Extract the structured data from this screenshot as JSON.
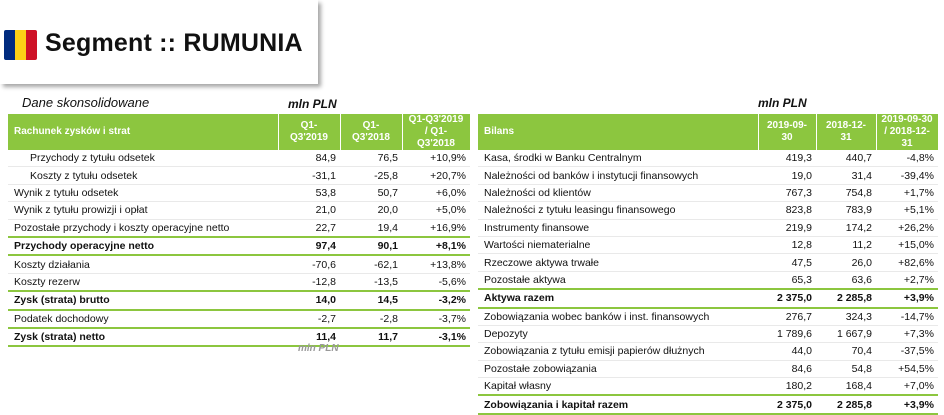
{
  "header": {
    "title": "Segment :: RUMUNIA",
    "flag_colors": [
      "#002b7f",
      "#fcd116",
      "#ce1126"
    ]
  },
  "left": {
    "caption": "Dane skonsolidowane",
    "unit": "mln PLN",
    "columns": [
      "Rachunek zysków i strat",
      "Q1-Q3'2019",
      "Q1-Q3'2018",
      "Q1-Q3'2019 / Q1-Q3'2018"
    ],
    "rows": [
      {
        "label": "Przychody z tytułu odsetek",
        "v1": "84,9",
        "v2": "76,5",
        "chg": "+10,9%"
      },
      {
        "label": "Koszty z tytułu odsetek",
        "v1": "-31,1",
        "v2": "-25,8",
        "chg": "+20,7%"
      },
      {
        "label": "Wynik z tytułu odsetek",
        "v1": "53,8",
        "v2": "50,7",
        "chg": "+6,0%"
      },
      {
        "label": "Wynik z tytułu prowizji i opłat",
        "v1": "21,0",
        "v2": "20,0",
        "chg": "+5,0%"
      },
      {
        "label": "Pozostałe przychody i koszty operacyjne netto",
        "v1": "22,7",
        "v2": "19,4",
        "chg": "+16,9%"
      },
      {
        "label": "Przychody operacyjne netto",
        "v1": "97,4",
        "v2": "90,1",
        "chg": "+8,1%"
      },
      {
        "label": "Koszty działania",
        "v1": "-70,6",
        "v2": "-62,1",
        "chg": "+13,8%"
      },
      {
        "label": "Koszty rezerw",
        "v1": "-12,8",
        "v2": "-13,5",
        "chg": "-5,6%"
      },
      {
        "label": "Zysk (strata) brutto",
        "v1": "14,0",
        "v2": "14,5",
        "chg": "-3,2%"
      },
      {
        "label": "Podatek dochodowy",
        "v1": "-2,7",
        "v2": "-2,8",
        "chg": "-3,7%"
      },
      {
        "label": "Zysk (strata) netto",
        "v1": "11,4",
        "v2": "11,7",
        "chg": "-3,1%"
      }
    ],
    "footer_faded": "mln PLN"
  },
  "right": {
    "unit": "mln PLN",
    "columns": [
      "Bilans",
      "2019-09-30",
      "2018-12-31",
      "2019-09-30 / 2018-12-31"
    ],
    "rows": [
      {
        "label": "Kasa, środki w Banku Centralnym",
        "v1": "419,3",
        "v2": "440,7",
        "chg": "-4,8%"
      },
      {
        "label": "Należności od banków i instytucji finansowych",
        "v1": "19,0",
        "v2": "31,4",
        "chg": "-39,4%"
      },
      {
        "label": "Należności od klientów",
        "v1": "767,3",
        "v2": "754,8",
        "chg": "+1,7%"
      },
      {
        "label": "Należności z tytułu leasingu finansowego",
        "v1": "823,8",
        "v2": "783,9",
        "chg": "+5,1%"
      },
      {
        "label": "Instrumenty finansowe",
        "v1": "219,9",
        "v2": "174,2",
        "chg": "+26,2%"
      },
      {
        "label": "Wartości niematerialne",
        "v1": "12,8",
        "v2": "11,2",
        "chg": "+15,0%"
      },
      {
        "label": "Rzeczowe aktywa trwałe",
        "v1": "47,5",
        "v2": "26,0",
        "chg": "+82,6%"
      },
      {
        "label": "Pozostałe aktywa",
        "v1": "65,3",
        "v2": "63,6",
        "chg": "+2,7%"
      },
      {
        "label": "Aktywa razem",
        "v1": "2 375,0",
        "v2": "2 285,8",
        "chg": "+3,9%"
      },
      {
        "label": "Zobowiązania wobec banków i inst. finansowych",
        "v1": "276,7",
        "v2": "324,3",
        "chg": "-14,7%"
      },
      {
        "label": "Depozyty",
        "v1": "1 789,6",
        "v2": "1 667,9",
        "chg": "+7,3%"
      },
      {
        "label": "Zobowiązania z tytułu emisji papierów dłużnych",
        "v1": "44,0",
        "v2": "70,4",
        "chg": "-37,5%"
      },
      {
        "label": "Pozostałe zobowiązania",
        "v1": "84,6",
        "v2": "54,8",
        "chg": "+54,5%"
      },
      {
        "label": "Kapitał własny",
        "v1": "180,2",
        "v2": "168,4",
        "chg": "+7,0%"
      },
      {
        "label": "Zobowiązania i kapitał razem",
        "v1": "2 375,0",
        "v2": "2 285,8",
        "chg": "+3,9%"
      }
    ]
  }
}
